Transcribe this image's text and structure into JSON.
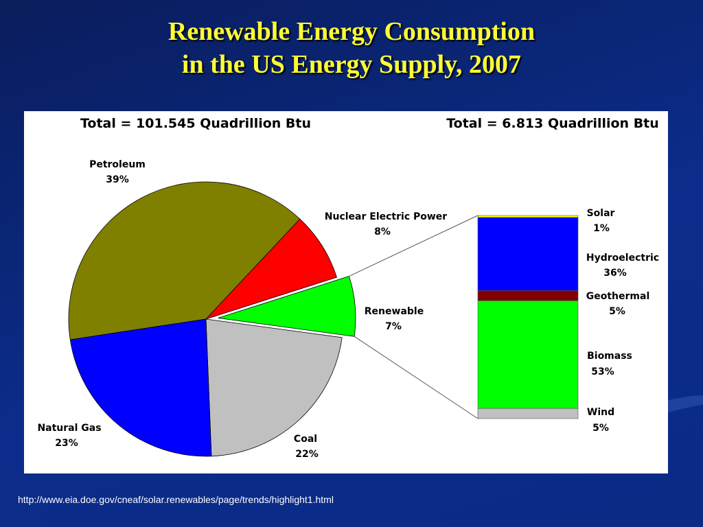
{
  "slide": {
    "title_line1": "Renewable Energy Consumption",
    "title_line2": "in the US Energy Supply, 2007",
    "source_url": "http://www.eia.doe.gov/cneaf/solar.renewables/page/trends/highlight1.html"
  },
  "chart_data": [
    {
      "type": "pie",
      "title": "Total = 101.545 Quadrillion Btu",
      "slices": [
        {
          "name": "Petroleum",
          "label": "39%",
          "value": 39,
          "color": "#808000"
        },
        {
          "name": "Nuclear Electric Power",
          "label": "8%",
          "value": 8,
          "color": "#ff0000"
        },
        {
          "name": "Renewable",
          "label": "7%",
          "value": 7,
          "color": "#00ff00",
          "exploded": true
        },
        {
          "name": "Coal",
          "label": "22%",
          "value": 22,
          "color": "#c0c0c0"
        },
        {
          "name": "Natural Gas",
          "label": "23%",
          "value": 23,
          "color": "#0000ff"
        }
      ]
    },
    {
      "type": "bar",
      "stacked": true,
      "title": "Total = 6.813 Quadrillion Btu",
      "segments": [
        {
          "name": "Solar",
          "label": "1%",
          "value": 1,
          "color": "#ffff00"
        },
        {
          "name": "Hydroelectric",
          "label": "36%",
          "value": 36,
          "color": "#0000ff"
        },
        {
          "name": "Geothermal",
          "label": "5%",
          "value": 5,
          "color": "#800000"
        },
        {
          "name": "Biomass",
          "label": "53%",
          "value": 53,
          "color": "#00ff00"
        },
        {
          "name": "Wind",
          "label": "5%",
          "value": 5,
          "color": "#c0c0c0"
        }
      ]
    }
  ]
}
